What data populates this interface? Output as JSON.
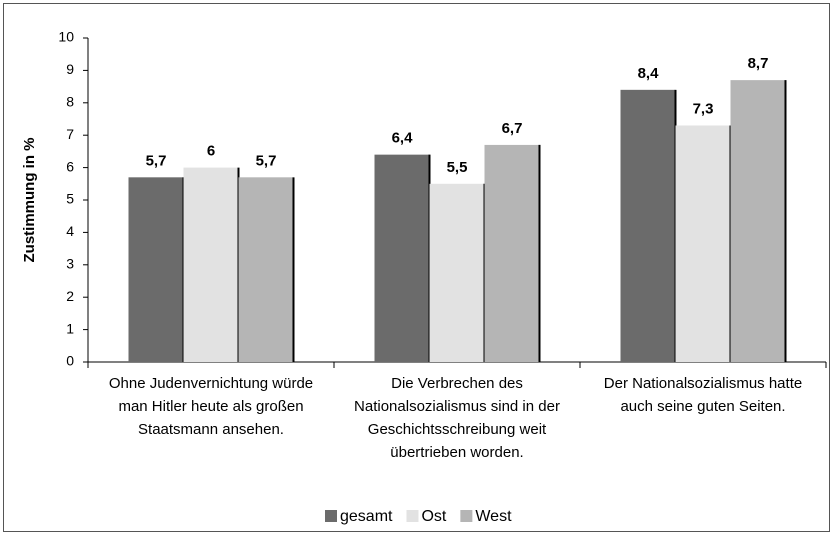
{
  "chart_data": {
    "type": "bar",
    "ylabel": "Zustimmung in %",
    "categories": [
      "Ohne Judenvernichtung würde man Hitler heute als großen Staatsmann ansehen.",
      "Die Verbrechen des Nationalsozialismus sind in der Geschichtsschreibung weit übertrieben worden.",
      "Der Nationalsozialismus hatte auch seine guten Seiten."
    ],
    "series": [
      {
        "name": "gesamt",
        "color": "#6b6b6b",
        "values": [
          5.7,
          6.4,
          8.4
        ],
        "value_labels": [
          "5,7",
          "6,4",
          "8,4"
        ]
      },
      {
        "name": "Ost",
        "color": "#e2e2e2",
        "values": [
          6,
          5.5,
          7.3
        ],
        "value_labels": [
          "6",
          "5,5",
          "7,3"
        ]
      },
      {
        "name": "West",
        "color": "#b5b5b5",
        "values": [
          5.7,
          6.7,
          8.7
        ],
        "value_labels": [
          "5,7",
          "6,7",
          "8,7"
        ]
      }
    ],
    "ylim": [
      0,
      10
    ],
    "yticks": [
      0,
      1,
      2,
      3,
      4,
      5,
      6,
      7,
      8,
      9,
      10
    ],
    "legend": "bottom"
  }
}
